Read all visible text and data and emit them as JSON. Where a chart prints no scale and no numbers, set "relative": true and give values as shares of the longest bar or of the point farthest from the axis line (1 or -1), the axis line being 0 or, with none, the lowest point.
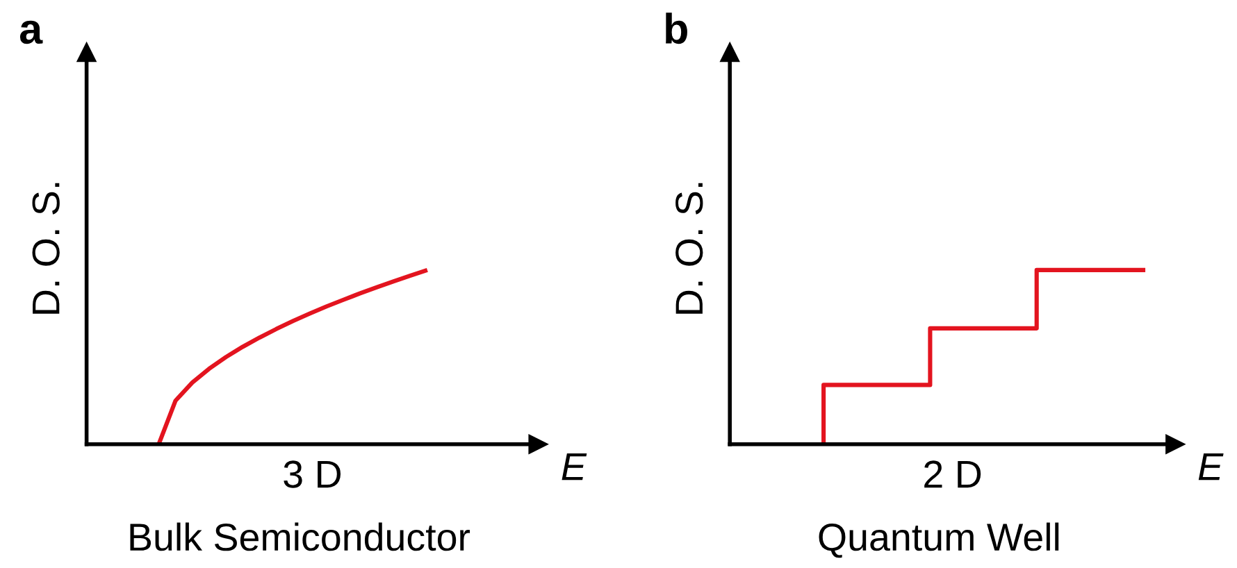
{
  "chart_data": [
    {
      "type": "line",
      "title": "a",
      "xlabel": "3 D",
      "ylabel": "D. O. S.",
      "annotations": [
        "E",
        "Bulk Semiconductor"
      ],
      "relative": true,
      "categories": [
        null,
        null,
        null,
        null,
        null,
        null,
        null,
        null,
        null,
        null,
        null,
        null,
        null,
        null,
        null,
        null,
        null,
        null,
        null,
        null,
        null,
        null,
        null,
        null,
        null,
        null,
        null
      ],
      "series": [
        {
          "color": "#e3141f",
          "values": [
            null,
            null,
            null,
            null,
            0,
            0.25,
            0.354,
            0.433,
            0.5,
            0.559,
            0.612,
            0.661,
            0.707,
            0.75,
            0.791,
            0.829,
            0.866,
            0.901,
            0.935,
            0.968,
            1,
            null,
            null,
            null,
            null,
            null,
            null
          ]
        }
      ]
    },
    {
      "type": "step",
      "title": "b",
      "xlabel": "2 D",
      "ylabel": "D. O. S.",
      "annotations": [
        "E",
        "Quantum Well"
      ],
      "relative": true,
      "categories": [
        null,
        null,
        null,
        null
      ],
      "series": [
        {
          "color": "#e3141f",
          "values": [
            0,
            0.34,
            0.665,
            1
          ]
        }
      ]
    }
  ]
}
